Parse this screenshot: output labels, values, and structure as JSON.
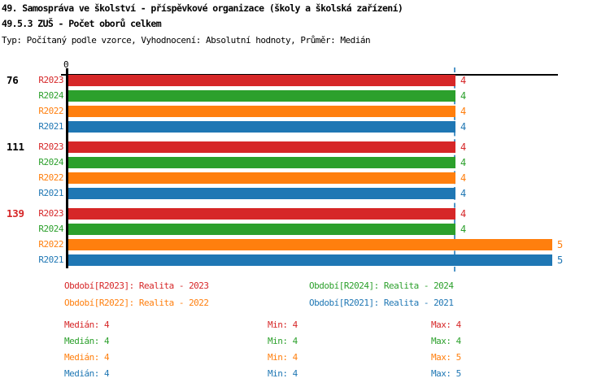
{
  "title": "49. Samospráva ve školství - příspěvkové organizace (školy a školská zařízení)",
  "subtitle": "49.5.3 ZUŠ - Počet oborů celkem",
  "meta": "Typ: Počítaný podle vzorce, Vyhodnocení: Absolutní hodnoty, Průměr: Medián",
  "colors": {
    "R2023": "#d62728",
    "R2024": "#2ca02c",
    "R2022": "#ff7f0e",
    "R2021": "#1f77b4",
    "median_line": "#4f96c8",
    "axis": "#000000"
  },
  "chart_data": {
    "type": "bar",
    "orientation": "horizontal",
    "title": "49.5.3 ZUŠ - Počet oborů celkem",
    "x_axis": {
      "origin_tick_label": "0",
      "range": [
        0,
        5.05
      ],
      "gridlines": false
    },
    "median_reference_line_x": 4,
    "series_order": [
      "R2023",
      "R2024",
      "R2022",
      "R2021"
    ],
    "groups": [
      {
        "label": "76",
        "label_color": "#000000",
        "values": {
          "R2023": 4,
          "R2024": 4,
          "R2022": 4,
          "R2021": 4
        }
      },
      {
        "label": "111",
        "label_color": "#000000",
        "values": {
          "R2023": 4,
          "R2024": 4,
          "R2022": 4,
          "R2021": 4
        }
      },
      {
        "label": "139",
        "label_color": "#d62728",
        "values": {
          "R2023": 4,
          "R2024": 4,
          "R2022": 5,
          "R2021": 5
        }
      }
    ],
    "legend_position": "bottom",
    "legend": [
      {
        "series": "R2023",
        "label": "Období[R2023]: Realita - 2023"
      },
      {
        "series": "R2024",
        "label": "Období[R2024]: Realita - 2024"
      },
      {
        "series": "R2022",
        "label": "Období[R2022]: Realita - 2022"
      },
      {
        "series": "R2021",
        "label": "Období[R2021]: Realita - 2021"
      }
    ],
    "stats": [
      {
        "series": "R2023",
        "median": "Medián: 4",
        "min": "Min: 4",
        "max": "Max: 4"
      },
      {
        "series": "R2024",
        "median": "Medián: 4",
        "min": "Min: 4",
        "max": "Max: 4"
      },
      {
        "series": "R2022",
        "median": "Medián: 4",
        "min": "Min: 4",
        "max": "Max: 5"
      },
      {
        "series": "R2021",
        "median": "Medián: 4",
        "min": "Min: 4",
        "max": "Max: 5"
      }
    ]
  }
}
